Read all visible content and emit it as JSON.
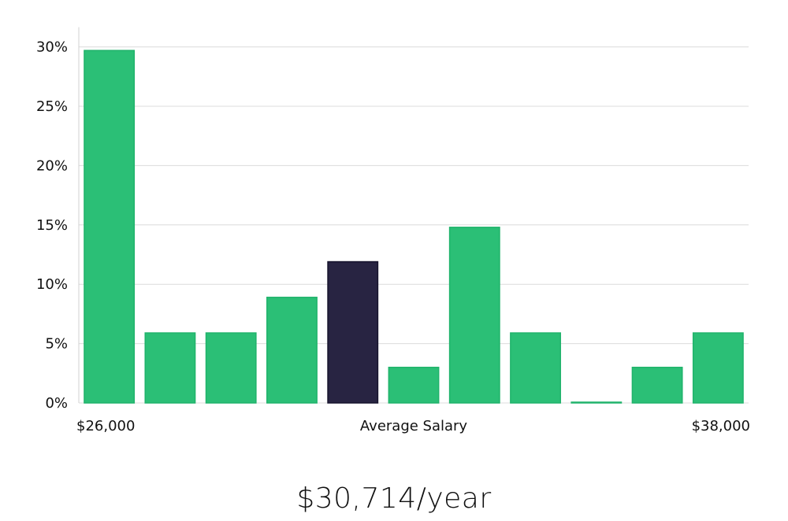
{
  "chart_data": {
    "type": "bar",
    "y_tick_labels": [
      "0%",
      "5%",
      "10%",
      "15%",
      "20%",
      "25%",
      "30%"
    ],
    "y_ticks": [
      0,
      5,
      10,
      15,
      20,
      25,
      30
    ],
    "ylim": [
      0,
      31
    ],
    "values": [
      29.7,
      5.9,
      5.9,
      8.9,
      11.9,
      3.0,
      14.8,
      5.9,
      0.0,
      3.0,
      5.9
    ],
    "highlight_index": 4,
    "x_labels": {
      "min": "$26,000",
      "center": "Average Salary",
      "max": "$38,000"
    },
    "grid": true,
    "colors": {
      "bar": "#2bbf76",
      "bar_stroke": "#20b36b",
      "highlight": "#282442",
      "highlight_stroke": "#17142d"
    }
  },
  "summary": {
    "salary_text": "$30,714/year"
  }
}
